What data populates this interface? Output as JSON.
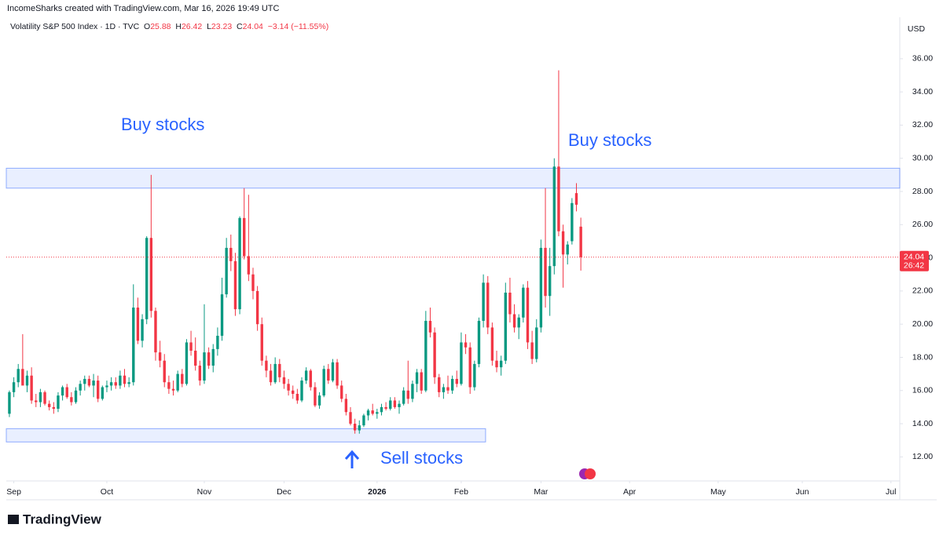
{
  "header": "IncomeSharks created with TradingView.com, Mar 16, 2026 19:49 UTC",
  "brand": "TradingView",
  "chart_data": {
    "type": "candlestick",
    "symbol": "Volatility S&P 500 Index · 1D · TVC",
    "ohlc": {
      "open": 25.88,
      "high": 26.42,
      "low": 23.23,
      "close": 24.04
    },
    "ohlc_letters": [
      "O",
      "H",
      "L",
      "C"
    ],
    "change": "−3.14 (−11.55%)",
    "currency": "USD",
    "countdown": "26:42",
    "up_color": "#089981",
    "down_color": "#f23645",
    "zone_color": "#2962ff",
    "annotations": [
      "Buy stocks",
      "Buy stocks",
      "Sell stocks"
    ],
    "zones": [
      {
        "y": [
          28.2,
          29.4
        ],
        "x": [
          -0.7,
          201
        ]
      },
      {
        "y": [
          12.9,
          13.7
        ],
        "x": [
          -0.7,
          107.5
        ]
      }
    ],
    "xlim": [
      -0.7,
      201
    ],
    "ylim": [
      10.55,
      38.5
    ],
    "xticks": [
      {
        "value": 1,
        "label": "Sep"
      },
      {
        "value": 22,
        "label": "Oct"
      },
      {
        "value": 44,
        "label": "Nov"
      },
      {
        "value": 62,
        "label": "Dec"
      },
      {
        "value": 83,
        "label": "2026"
      },
      {
        "value": 102,
        "label": "Feb"
      },
      {
        "value": 120,
        "label": "Mar"
      },
      {
        "value": 140,
        "label": "Apr"
      },
      {
        "value": 160,
        "label": "May"
      },
      {
        "value": 179,
        "label": "Jun"
      },
      {
        "value": 199,
        "label": "Jul"
      }
    ],
    "yticks": [
      {
        "value": 12,
        "label": "12.00"
      },
      {
        "value": 14,
        "label": "14.00"
      },
      {
        "value": 16,
        "label": "16.00"
      },
      {
        "value": 18,
        "label": "18.00"
      },
      {
        "value": 20,
        "label": "20.00"
      },
      {
        "value": 22,
        "label": "22.00"
      },
      {
        "value": 24,
        "label": "24.00"
      },
      {
        "value": 26,
        "label": "26.00"
      },
      {
        "value": 28,
        "label": "28.00"
      },
      {
        "value": 30,
        "label": "30.00"
      },
      {
        "value": 32,
        "label": "32.00"
      },
      {
        "value": 34,
        "label": "34.00"
      },
      {
        "value": 36,
        "label": "36.00"
      }
    ],
    "candles": [
      [
        14.6,
        16.0,
        14.4,
        15.9
      ],
      [
        15.9,
        16.8,
        15.6,
        16.5
      ],
      [
        16.5,
        17.6,
        16.2,
        17.3
      ],
      [
        17.3,
        19.4,
        16.4,
        16.3
      ],
      [
        16.3,
        17.2,
        15.9,
        16.9
      ],
      [
        16.9,
        17.4,
        15.2,
        15.4
      ],
      [
        15.4,
        15.8,
        15.0,
        15.3
      ],
      [
        15.3,
        16.1,
        15.0,
        15.9
      ],
      [
        15.9,
        16.0,
        15.1,
        15.2
      ],
      [
        15.2,
        15.4,
        14.8,
        15.0
      ],
      [
        15.0,
        15.3,
        14.6,
        14.9
      ],
      [
        14.9,
        15.9,
        14.7,
        15.7
      ],
      [
        15.7,
        16.3,
        15.4,
        16.2
      ],
      [
        16.2,
        16.4,
        15.5,
        15.6
      ],
      [
        15.6,
        15.9,
        15.1,
        15.3
      ],
      [
        15.3,
        16.2,
        15.2,
        16.0
      ],
      [
        16.0,
        16.6,
        15.7,
        16.4
      ],
      [
        16.4,
        16.9,
        16.0,
        16.7
      ],
      [
        16.7,
        16.9,
        16.2,
        16.3
      ],
      [
        16.3,
        17.0,
        15.6,
        16.6
      ],
      [
        16.6,
        16.9,
        15.3,
        15.5
      ],
      [
        15.5,
        16.3,
        15.4,
        16.2
      ],
      [
        16.2,
        16.6,
        15.9,
        16.3
      ],
      [
        16.3,
        16.8,
        16.0,
        16.5
      ],
      [
        16.5,
        16.8,
        16.1,
        16.3
      ],
      [
        16.3,
        17.2,
        16.1,
        16.9
      ],
      [
        16.9,
        17.3,
        16.2,
        16.4
      ],
      [
        16.4,
        16.8,
        16.2,
        16.5
      ],
      [
        16.5,
        22.4,
        16.3,
        21.0
      ],
      [
        21.0,
        21.6,
        18.8,
        19.0
      ],
      [
        19.0,
        20.6,
        18.6,
        20.3
      ],
      [
        20.3,
        25.3,
        20.0,
        25.2
      ],
      [
        25.2,
        29.0,
        20.4,
        20.8
      ],
      [
        20.8,
        21.0,
        17.8,
        18.3
      ],
      [
        18.3,
        19.0,
        17.4,
        17.8
      ],
      [
        17.8,
        18.2,
        16.2,
        16.5
      ],
      [
        16.5,
        16.9,
        15.8,
        16.1
      ],
      [
        16.1,
        16.6,
        15.7,
        16.0
      ],
      [
        16.0,
        17.2,
        15.9,
        17.0
      ],
      [
        17.0,
        17.3,
        16.2,
        16.4
      ],
      [
        16.4,
        19.1,
        16.3,
        18.9
      ],
      [
        18.9,
        19.6,
        18.1,
        18.4
      ],
      [
        18.4,
        19.2,
        17.2,
        17.5
      ],
      [
        17.5,
        17.8,
        16.3,
        16.6
      ],
      [
        16.6,
        21.2,
        16.4,
        18.3
      ],
      [
        18.3,
        18.6,
        17.3,
        17.5
      ],
      [
        17.5,
        18.8,
        17.1,
        18.5
      ],
      [
        18.5,
        19.8,
        18.1,
        19.3
      ],
      [
        19.3,
        22.8,
        19.0,
        21.8
      ],
      [
        21.8,
        25.2,
        21.6,
        24.6
      ],
      [
        24.6,
        25.4,
        23.2,
        23.8
      ],
      [
        23.8,
        24.3,
        20.5,
        20.9
      ],
      [
        20.9,
        26.5,
        20.6,
        26.4
      ],
      [
        26.4,
        28.2,
        23.9,
        24.1
      ],
      [
        24.1,
        27.8,
        22.6,
        23.0
      ],
      [
        23.0,
        23.4,
        21.5,
        22.0
      ],
      [
        22.0,
        22.3,
        19.6,
        20.0
      ],
      [
        20.0,
        20.4,
        17.5,
        17.8
      ],
      [
        17.8,
        18.1,
        16.8,
        17.2
      ],
      [
        17.2,
        17.6,
        16.3,
        16.5
      ],
      [
        16.5,
        18.0,
        16.4,
        17.6
      ],
      [
        17.6,
        17.9,
        16.5,
        16.8
      ],
      [
        16.8,
        17.2,
        16.1,
        16.4
      ],
      [
        16.4,
        16.7,
        15.7,
        16.0
      ],
      [
        16.0,
        16.3,
        15.5,
        15.8
      ],
      [
        15.8,
        16.1,
        15.2,
        15.4
      ],
      [
        15.4,
        16.8,
        15.3,
        16.6
      ],
      [
        16.6,
        17.4,
        16.4,
        17.2
      ],
      [
        17.2,
        17.3,
        16.0,
        16.2
      ],
      [
        16.2,
        16.5,
        15.0,
        15.1
      ],
      [
        15.1,
        15.9,
        14.9,
        15.7
      ],
      [
        15.7,
        17.5,
        15.6,
        17.3
      ],
      [
        17.3,
        17.6,
        16.4,
        16.6
      ],
      [
        16.6,
        17.9,
        16.5,
        17.7
      ],
      [
        17.7,
        17.9,
        16.1,
        16.3
      ],
      [
        16.3,
        16.6,
        15.3,
        15.5
      ],
      [
        15.5,
        15.8,
        14.5,
        14.7
      ],
      [
        14.7,
        15.0,
        13.9,
        14.0
      ],
      [
        14.0,
        14.3,
        13.4,
        13.6
      ],
      [
        13.6,
        14.2,
        13.4,
        13.9
      ],
      [
        13.9,
        14.6,
        13.8,
        14.5
      ],
      [
        14.5,
        14.9,
        14.2,
        14.8
      ],
      [
        14.8,
        15.2,
        14.5,
        14.6
      ],
      [
        14.6,
        14.9,
        14.3,
        14.7
      ],
      [
        14.7,
        15.2,
        14.5,
        15.0
      ],
      [
        15.0,
        15.3,
        14.8,
        14.9
      ],
      [
        14.9,
        15.6,
        14.8,
        15.4
      ],
      [
        15.4,
        15.6,
        14.9,
        15.0
      ],
      [
        15.0,
        15.4,
        14.6,
        15.2
      ],
      [
        15.2,
        16.2,
        15.1,
        16.0
      ],
      [
        16.0,
        17.8,
        15.2,
        15.5
      ],
      [
        15.5,
        16.6,
        15.3,
        16.4
      ],
      [
        16.4,
        17.3,
        15.9,
        17.1
      ],
      [
        17.1,
        17.3,
        15.8,
        16.0
      ],
      [
        16.0,
        20.8,
        15.9,
        20.2
      ],
      [
        20.2,
        21.0,
        19.2,
        19.5
      ],
      [
        19.5,
        19.8,
        16.4,
        16.8
      ],
      [
        16.8,
        17.0,
        15.6,
        15.9
      ],
      [
        15.9,
        16.4,
        15.5,
        16.2
      ],
      [
        16.2,
        16.9,
        15.8,
        16.0
      ],
      [
        16.0,
        16.9,
        15.8,
        16.7
      ],
      [
        16.7,
        17.2,
        16.2,
        16.4
      ],
      [
        16.4,
        19.5,
        16.3,
        18.9
      ],
      [
        18.9,
        19.4,
        18.2,
        18.6
      ],
      [
        18.6,
        18.9,
        15.8,
        16.2
      ],
      [
        16.2,
        17.8,
        16.0,
        17.6
      ],
      [
        17.6,
        20.4,
        17.4,
        20.2
      ],
      [
        20.2,
        23.0,
        19.8,
        22.5
      ],
      [
        22.5,
        22.9,
        19.4,
        19.8
      ],
      [
        19.8,
        20.1,
        17.5,
        17.8
      ],
      [
        17.8,
        18.4,
        17.1,
        17.4
      ],
      [
        17.4,
        18.1,
        16.9,
        17.8
      ],
      [
        17.8,
        22.5,
        17.6,
        21.9
      ],
      [
        21.9,
        22.8,
        20.1,
        20.6
      ],
      [
        20.6,
        21.2,
        19.5,
        19.8
      ],
      [
        19.8,
        20.6,
        19.1,
        20.4
      ],
      [
        20.4,
        22.4,
        20.1,
        22.2
      ],
      [
        22.2,
        22.6,
        18.5,
        18.9
      ],
      [
        18.9,
        19.6,
        17.6,
        17.9
      ],
      [
        17.9,
        20.3,
        17.7,
        19.8
      ],
      [
        19.8,
        25.1,
        19.5,
        24.6
      ],
      [
        24.6,
        28.2,
        21.0,
        21.7
      ],
      [
        21.7,
        24.6,
        20.5,
        23.5
      ],
      [
        23.5,
        30.0,
        23.0,
        29.5
      ],
      [
        29.5,
        35.3,
        25.3,
        25.6
      ],
      [
        25.6,
        26.0,
        22.2,
        24.2
      ],
      [
        24.2,
        25.0,
        23.6,
        24.8
      ],
      [
        25.0,
        27.6,
        24.8,
        27.3
      ],
      [
        27.9,
        28.5,
        26.8,
        27.2
      ],
      [
        25.88,
        26.42,
        23.23,
        24.04
      ]
    ]
  }
}
